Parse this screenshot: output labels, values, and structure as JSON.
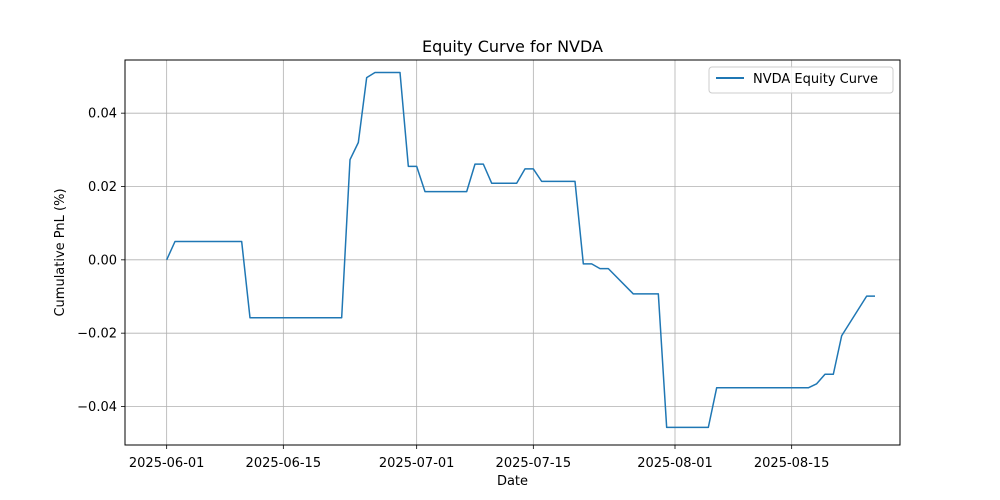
{
  "chart_data": {
    "type": "line",
    "title": "Equity Curve for NVDA",
    "xlabel": "Date",
    "ylabel": "Cumulative PnL (%)",
    "x_ticks": [
      "2025-06-01",
      "2025-06-15",
      "2025-07-01",
      "2025-07-15",
      "2025-08-01",
      "2025-08-15"
    ],
    "y_ticks": [
      -0.04,
      -0.02,
      0.0,
      0.02,
      0.04
    ],
    "y_tick_labels": [
      "−0.04",
      "−0.02",
      "0.00",
      "0.02",
      "0.04"
    ],
    "ylim": [
      -0.0505,
      0.0545
    ],
    "xlim": [
      "2025-05-27",
      "2025-08-28"
    ],
    "grid": true,
    "legend_position": "top-right",
    "series": [
      {
        "name": "NVDA Equity Curve",
        "color": "#1f77b4",
        "points": [
          [
            "2025-06-01",
            0.0
          ],
          [
            "2025-06-02",
            0.005
          ],
          [
            "2025-06-10",
            0.005
          ],
          [
            "2025-06-11",
            -0.0158
          ],
          [
            "2025-06-22",
            -0.0158
          ],
          [
            "2025-06-23",
            0.0273
          ],
          [
            "2025-06-24",
            0.032
          ],
          [
            "2025-06-25",
            0.0497
          ],
          [
            "2025-06-26",
            0.0511
          ],
          [
            "2025-06-29",
            0.0511
          ],
          [
            "2025-06-30",
            0.0255
          ],
          [
            "2025-07-01",
            0.0255
          ],
          [
            "2025-07-02",
            0.0186
          ],
          [
            "2025-07-07",
            0.0186
          ],
          [
            "2025-07-08",
            0.0261
          ],
          [
            "2025-07-09",
            0.0261
          ],
          [
            "2025-07-10",
            0.0209
          ],
          [
            "2025-07-13",
            0.0209
          ],
          [
            "2025-07-14",
            0.0248
          ],
          [
            "2025-07-15",
            0.0248
          ],
          [
            "2025-07-16",
            0.0214
          ],
          [
            "2025-07-20",
            0.0214
          ],
          [
            "2025-07-21",
            -0.0011
          ],
          [
            "2025-07-22",
            -0.0011
          ],
          [
            "2025-07-23",
            -0.0024
          ],
          [
            "2025-07-24",
            -0.0024
          ],
          [
            "2025-07-27",
            -0.0093
          ],
          [
            "2025-07-30",
            -0.0093
          ],
          [
            "2025-07-31",
            -0.0457
          ],
          [
            "2025-08-05",
            -0.0457
          ],
          [
            "2025-08-06",
            -0.0349
          ],
          [
            "2025-08-17",
            -0.0349
          ],
          [
            "2025-08-18",
            -0.0338
          ],
          [
            "2025-08-19",
            -0.0312
          ],
          [
            "2025-08-20",
            -0.0312
          ],
          [
            "2025-08-21",
            -0.0207
          ],
          [
            "2025-08-24",
            -0.0099
          ],
          [
            "2025-08-25",
            -0.0099
          ]
        ]
      }
    ]
  }
}
